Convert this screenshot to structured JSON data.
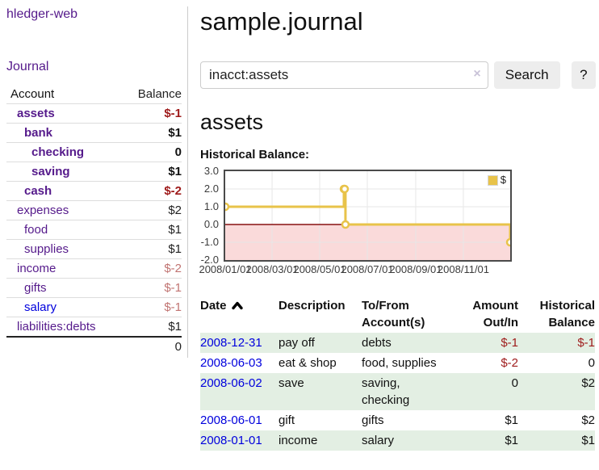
{
  "app": {
    "title": "hledger-web",
    "nav_journal": "Journal"
  },
  "sidebar": {
    "col_account": "Account",
    "col_balance": "Balance",
    "accounts": [
      {
        "name": "assets",
        "balance": "$-1"
      },
      {
        "name": "bank",
        "balance": "$1"
      },
      {
        "name": "checking",
        "balance": "0"
      },
      {
        "name": "saving",
        "balance": "$1"
      },
      {
        "name": "cash",
        "balance": "$-2"
      },
      {
        "name": "expenses",
        "balance": "$2"
      },
      {
        "name": "food",
        "balance": "$1"
      },
      {
        "name": "supplies",
        "balance": "$1"
      },
      {
        "name": "income",
        "balance": "$-2"
      },
      {
        "name": "gifts",
        "balance": "$-1"
      },
      {
        "name": "salary",
        "balance": "$-1"
      },
      {
        "name": "liabilities:debts",
        "balance": "$1"
      }
    ],
    "total": "0"
  },
  "main": {
    "title": "sample.journal",
    "search": {
      "value": "inacct:assets",
      "clear_label": "×",
      "button_label": "Search",
      "help_label": "?"
    },
    "account_heading": "assets",
    "chart_heading": "Historical Balance:"
  },
  "chart_data": {
    "type": "line",
    "title": "Historical Balance:",
    "step": true,
    "series": [
      {
        "name": "$",
        "color": "#e8c34a",
        "points": [
          [
            "2008-01-01",
            1
          ],
          [
            "2008-06-01",
            2
          ],
          [
            "2008-06-02",
            2
          ],
          [
            "2008-06-03",
            0
          ],
          [
            "2008-12-31",
            -1
          ]
        ]
      }
    ],
    "x_ticks": [
      "2008/01/01",
      "2008/03/01",
      "2008/05/01",
      "2008/07/01",
      "2008/09/01",
      "2008/11/01"
    ],
    "y_ticks": [
      "3.0",
      "2.0",
      "1.0",
      "0.0",
      "-1.0",
      "-2.0"
    ],
    "xlim": [
      "2008-01-01",
      "2008-12-31"
    ],
    "ylim": [
      -2,
      3
    ],
    "grid": true,
    "negative_region_color": "#fadada",
    "zero_line_color": "#871111",
    "gridline_color": "#e7e7e7",
    "legend": {
      "label": "$",
      "position": "top-right"
    }
  },
  "register": {
    "headers": {
      "date": "Date",
      "description": "Description",
      "accounts": "To/From Account(s)",
      "amount": "Amount Out/In",
      "balance": "Historical Balance"
    },
    "rows": [
      {
        "date": "2008-12-31",
        "description": "pay off",
        "accounts": "debts",
        "amount": "$-1",
        "balance": "$-1"
      },
      {
        "date": "2008-06-03",
        "description": "eat & shop",
        "accounts": "food, supplies",
        "amount": "$-2",
        "balance": "0"
      },
      {
        "date": "2008-06-02",
        "description": "save",
        "accounts": "saving, checking",
        "amount": "0",
        "balance": "$2"
      },
      {
        "date": "2008-06-01",
        "description": "gift",
        "accounts": "gifts",
        "amount": "$1",
        "balance": "$2"
      },
      {
        "date": "2008-01-01",
        "description": "income",
        "accounts": "salary",
        "amount": "$1",
        "balance": "$1"
      }
    ]
  }
}
